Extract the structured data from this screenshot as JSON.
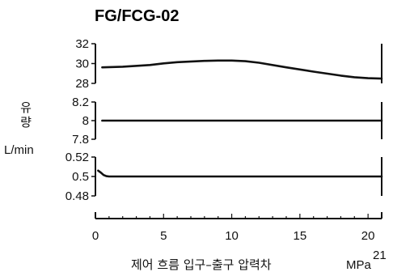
{
  "chart_data": {
    "type": "line",
    "title": "FG/FCG-02",
    "ylabel_lines": [
      "유",
      "량"
    ],
    "yunit": "L/min",
    "xlabel": "제어 흐름 입구–출구 압력차",
    "xunit": "MPa",
    "xunit_superscript": "21",
    "xlim": [
      0,
      21
    ],
    "xticks": [
      0,
      5,
      10,
      15,
      20
    ],
    "panels": [
      {
        "name": "top",
        "ylim": [
          28,
          32
        ],
        "yticks": [
          32,
          30,
          28
        ],
        "x": [
          0.5,
          2,
          4,
          5,
          6,
          8,
          9,
          10,
          11,
          12,
          14,
          16,
          18,
          19,
          20,
          21
        ],
        "y": [
          29.62,
          29.68,
          29.85,
          30.02,
          30.14,
          30.27,
          30.3,
          30.3,
          30.24,
          30.08,
          29.62,
          29.18,
          28.78,
          28.62,
          28.52,
          28.48
        ]
      },
      {
        "name": "middle",
        "ylim": [
          7.8,
          8.2
        ],
        "yticks": [
          8.2,
          8.0,
          7.8
        ],
        "x": [
          0.5,
          21
        ],
        "y": [
          8.0,
          8.0
        ]
      },
      {
        "name": "bottom",
        "ylim": [
          0.48,
          0.52
        ],
        "yticks": [
          0.52,
          0.5,
          0.48
        ],
        "x": [
          0.2,
          0.4,
          0.6,
          0.8,
          1.0,
          21
        ],
        "y": [
          0.506,
          0.504,
          0.5015,
          0.5003,
          0.5,
          0.5
        ]
      }
    ]
  }
}
